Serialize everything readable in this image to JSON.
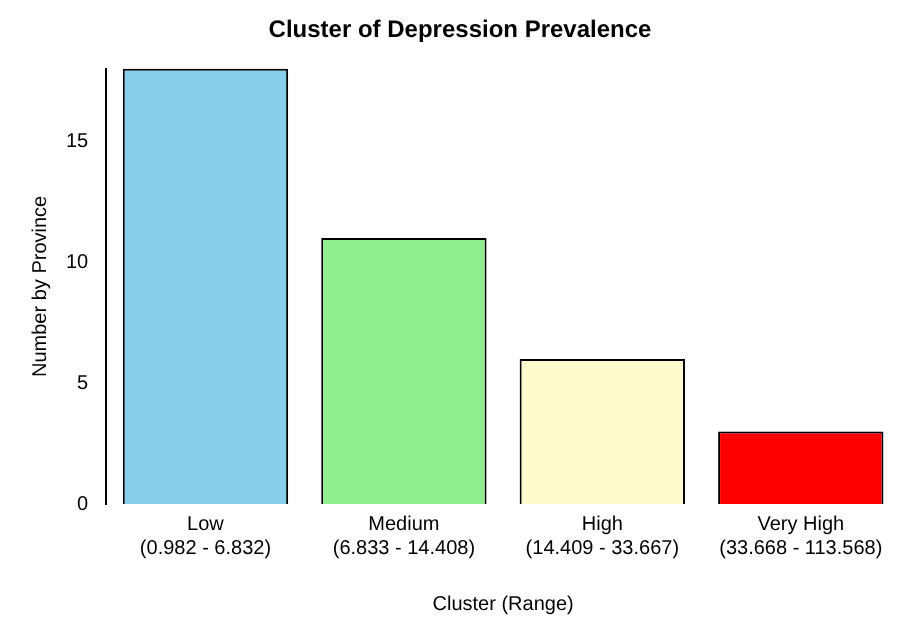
{
  "chart_data": {
    "type": "bar",
    "title": "Cluster of Depression Prevalence",
    "xlabel": "Cluster (Range)",
    "ylabel": "Number by Province",
    "categories": [
      "Low\n(0.982 - 6.832)",
      "Medium\n(6.833 - 14.408)",
      "High\n(14.409 - 33.667)",
      "Very High\n(33.668 - 113.568)"
    ],
    "values": [
      18,
      11,
      6,
      3
    ],
    "colors": [
      "#87ceeb",
      "#90ee90",
      "#fffacd",
      "#ff0000"
    ],
    "ylim": [
      0,
      18
    ],
    "yticks": [
      0,
      5,
      10,
      15
    ],
    "grid": false,
    "legend": false
  }
}
